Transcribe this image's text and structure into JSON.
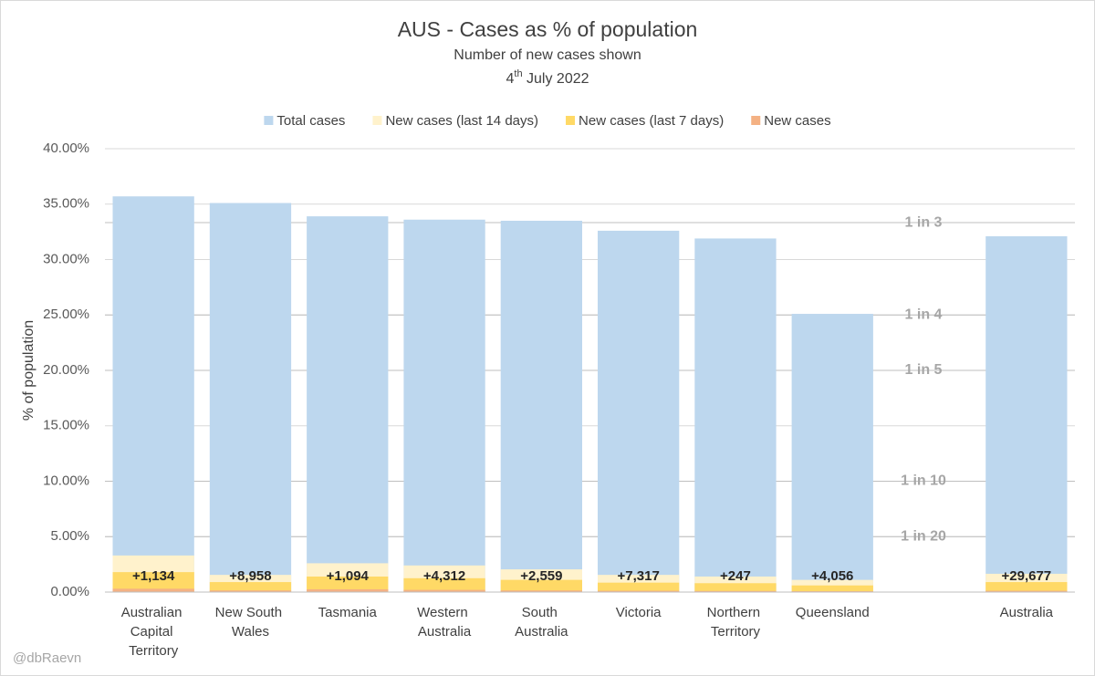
{
  "chart_data": {
    "type": "overlap-bar",
    "title": "AUS - Cases as % of population",
    "subtitle": "Number of new cases shown",
    "date": {
      "day": "4",
      "suffix": "th",
      "rest": " July 2022"
    },
    "y_label": "% of population",
    "credit": "@dbRaevn",
    "categories": [
      "Australian Capital Territory",
      "New South Wales",
      "Tasmania",
      "Western Australia",
      "South Australia",
      "Victoria",
      "Northern Territory",
      "Queensland",
      null,
      "Australia"
    ],
    "series": [
      {
        "name": "Total cases",
        "color": "#bdd7ee",
        "values": [
          35.7,
          35.1,
          33.9,
          33.6,
          33.5,
          32.6,
          31.9,
          25.1,
          null,
          32.1
        ]
      },
      {
        "name": "New cases (last 14 days)",
        "color": "#fff2cc",
        "values": [
          3.3,
          1.55,
          2.6,
          2.4,
          2.05,
          1.55,
          1.4,
          1.1,
          null,
          1.65
        ]
      },
      {
        "name": "New cases (last 7 days)",
        "color": "#ffd966",
        "values": [
          1.8,
          0.9,
          1.4,
          1.25,
          1.1,
          0.85,
          0.8,
          0.6,
          null,
          0.9
        ]
      },
      {
        "name": "New cases",
        "color": "#f4b183",
        "values": [
          0.3,
          0.15,
          0.25,
          0.2,
          0.15,
          0.12,
          0.1,
          0.08,
          null,
          0.12
        ]
      }
    ],
    "data_labels": [
      "+1,134",
      "+8,958",
      "+1,094",
      "+4,312",
      "+2,559",
      "+7,317",
      "+247",
      "+4,056",
      null,
      "+29,677"
    ],
    "reference_lines": [
      {
        "value": 33.33,
        "label": "1 in 3"
      },
      {
        "value": 25,
        "label": "1 in 4"
      },
      {
        "value": 20,
        "label": "1 in 5"
      },
      {
        "value": 10,
        "label": "1 in 10"
      },
      {
        "value": 5,
        "label": "1 in 20"
      }
    ],
    "ylim": [
      0,
      40
    ],
    "yticks": [
      {
        "value": 0,
        "label": "0.00%"
      },
      {
        "value": 5,
        "label": "5.00%"
      },
      {
        "value": 10,
        "label": "10.00%"
      },
      {
        "value": 15,
        "label": "15.00%"
      },
      {
        "value": 20,
        "label": "20.00%"
      },
      {
        "value": 25,
        "label": "25.00%"
      },
      {
        "value": 30,
        "label": "30.00%"
      },
      {
        "value": 35,
        "label": "35.00%"
      },
      {
        "value": 40,
        "label": "40.00%"
      }
    ],
    "grid": true,
    "legend": "top"
  }
}
